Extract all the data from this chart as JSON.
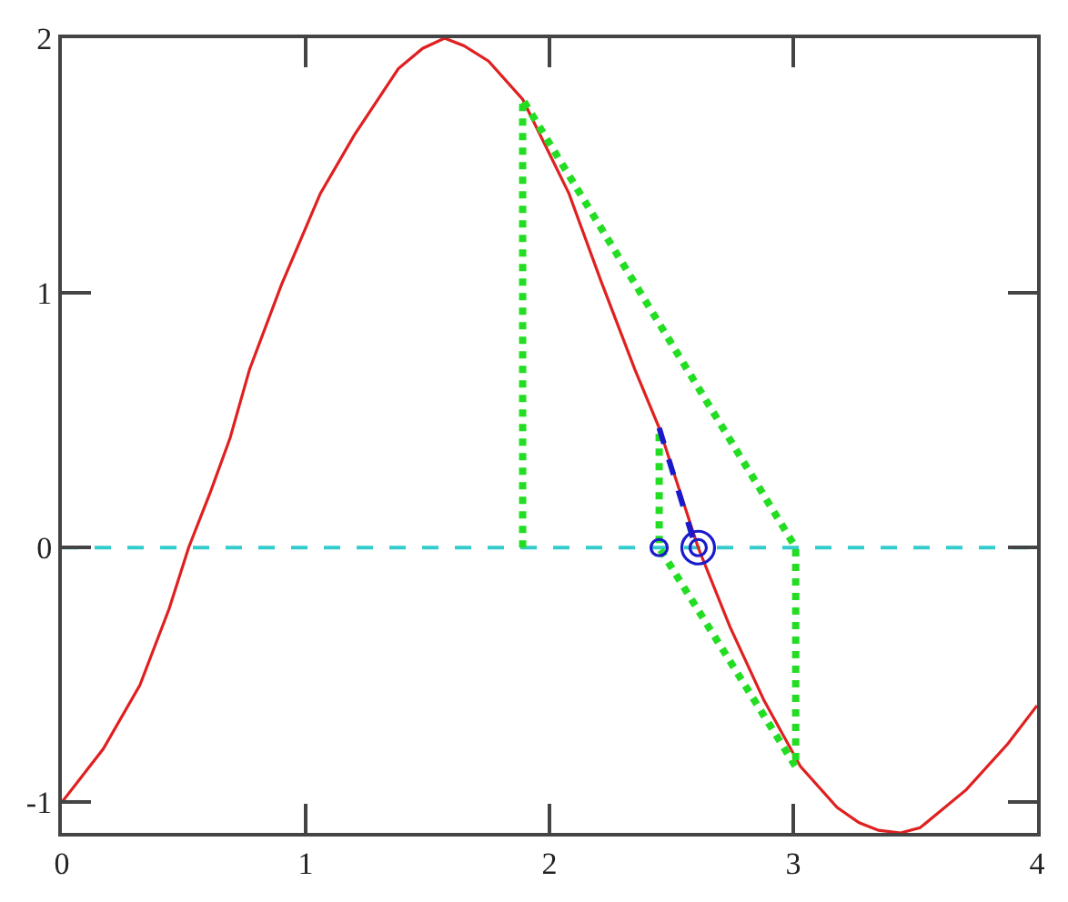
{
  "chart_data": {
    "type": "line",
    "xlim": [
      0,
      4
    ],
    "ylim": [
      -1.12,
      2
    ],
    "xticks": [
      0,
      1,
      2,
      3,
      4
    ],
    "yticks": [
      -1,
      0,
      1,
      2
    ],
    "grid": false,
    "ref_lines": [
      {
        "axis": "y",
        "value": 0,
        "color": "#33cccc",
        "line_style": "dashed"
      }
    ],
    "series": [
      {
        "color": "#e02020",
        "line_style": "solid",
        "x": [
          0.0,
          0.17,
          0.32,
          0.44,
          0.52,
          0.61,
          0.69,
          0.77,
          0.9,
          1.06,
          1.2,
          1.38,
          1.48,
          1.57,
          1.65,
          1.75,
          1.89,
          2.08,
          2.21,
          2.35,
          2.45,
          2.61,
          2.74,
          2.88,
          3.03,
          3.18,
          3.27,
          3.35,
          3.44,
          3.52,
          3.71,
          3.88,
          4.0
        ],
        "values": [
          -1.0,
          -0.79,
          -0.54,
          -0.24,
          0.0,
          0.22,
          0.43,
          0.7,
          1.03,
          1.39,
          1.62,
          1.88,
          1.96,
          2.0,
          1.97,
          1.91,
          1.76,
          1.39,
          1.05,
          0.7,
          0.47,
          0.0,
          -0.31,
          -0.6,
          -0.86,
          -1.02,
          -1.08,
          -1.11,
          -1.12,
          -1.1,
          -0.95,
          -0.77,
          -0.62
        ]
      },
      {
        "type": "line",
        "color": "#22dd22",
        "line_style": "dotted",
        "x": [
          1.89,
          1.89,
          3.01,
          3.01,
          2.45,
          2.45
        ],
        "values": [
          0.0,
          1.76,
          0.0,
          -0.86,
          0.0,
          0.47
        ]
      },
      {
        "type": "line",
        "color": "#1a1acc",
        "line_style": "dashed",
        "x": [
          2.45,
          2.6
        ],
        "values": [
          0.47,
          0.0
        ]
      },
      {
        "type": "scatter",
        "color": "#1a1acc",
        "marker": "circle",
        "x": [
          2.45,
          2.61
        ],
        "values": [
          0,
          0
        ]
      },
      {
        "type": "scatter",
        "color": "#1a1acc",
        "marker": "circle",
        "x": [
          2.61
        ],
        "values": [
          0
        ]
      }
    ]
  }
}
